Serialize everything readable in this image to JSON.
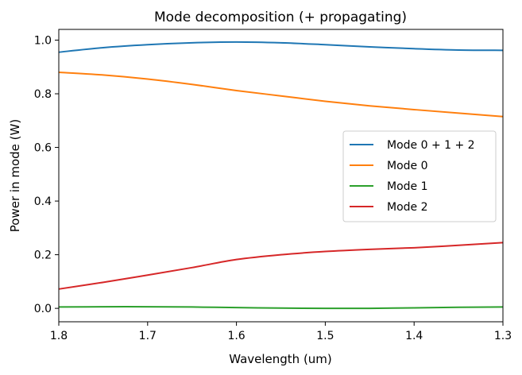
{
  "chart_data": {
    "type": "line",
    "title": "Mode decomposition (+ propagating)",
    "xlabel": "Wavelength (um)",
    "ylabel": "Power in mode (W)",
    "xlim": [
      1.8,
      1.3
    ],
    "ylim": [
      -0.05,
      1.04
    ],
    "xticks": [
      1.8,
      1.7,
      1.6,
      1.5,
      1.4,
      1.3
    ],
    "xtick_labels": [
      "1.8",
      "1.7",
      "1.6",
      "1.5",
      "1.4",
      "1.3"
    ],
    "yticks": [
      0.0,
      0.2,
      0.4,
      0.6,
      0.8,
      1.0
    ],
    "ytick_labels": [
      "0.0",
      "0.2",
      "0.4",
      "0.6",
      "0.8",
      "1.0"
    ],
    "grid": false,
    "legend_position": "center-right",
    "x": [
      1.8,
      1.75,
      1.7,
      1.65,
      1.6,
      1.55,
      1.5,
      1.45,
      1.4,
      1.35,
      1.3
    ],
    "series": [
      {
        "name": "Mode 0 + 1 + 2",
        "color": "#1f77b4",
        "values": [
          0.955,
          0.972,
          0.983,
          0.99,
          0.993,
          0.99,
          0.983,
          0.975,
          0.968,
          0.963,
          0.962
        ]
      },
      {
        "name": "Mode 0",
        "color": "#ff7f0e",
        "values": [
          0.88,
          0.87,
          0.855,
          0.835,
          0.812,
          0.792,
          0.772,
          0.755,
          0.741,
          0.728,
          0.715
        ]
      },
      {
        "name": "Mode 1",
        "color": "#2ca02c",
        "values": [
          0.005,
          0.006,
          0.006,
          0.005,
          0.003,
          0.001,
          0.0,
          0.0,
          0.002,
          0.004,
          0.005
        ]
      },
      {
        "name": "Mode 2",
        "color": "#d62728",
        "values": [
          0.072,
          0.097,
          0.124,
          0.152,
          0.182,
          0.2,
          0.212,
          0.22,
          0.226,
          0.235,
          0.245
        ]
      }
    ]
  }
}
